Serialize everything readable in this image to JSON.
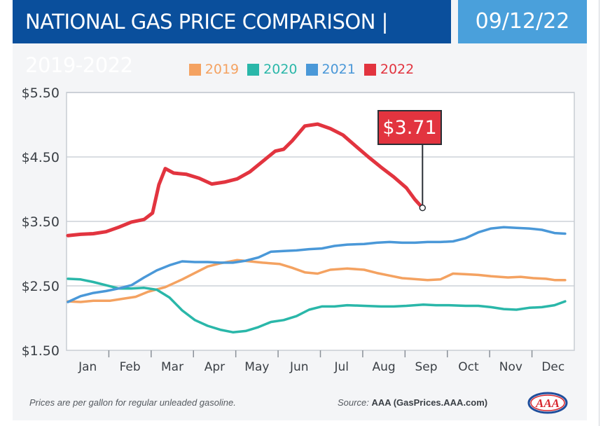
{
  "header": {
    "title": "NATIONAL GAS PRICE COMPARISON | 2019-2022",
    "date": "09/12/22"
  },
  "colors": {
    "header_bg": "#0a4f9c",
    "date_bg": "#4aa0db",
    "grid": "#d9dde2"
  },
  "footer": {
    "note": "Prices are per gallon for regular unleaded gasoline.",
    "source_label": "Source:",
    "source_value": "AAA (GasPrices.AAA.com)",
    "logo": "AAA",
    "logo_icon": "aaa-logo-icon"
  },
  "chart_data": {
    "type": "line",
    "title": "NATIONAL GAS PRICE COMPARISON | 2019-2022",
    "xlabel": "",
    "ylabel": "",
    "ylim": [
      1.5,
      5.5
    ],
    "yticks": [
      1.5,
      2.5,
      3.5,
      4.5,
      5.5
    ],
    "ytick_labels": [
      "$1.50",
      "$2.50",
      "$3.50",
      "$4.50",
      "$5.50"
    ],
    "x_months": [
      "Jan",
      "Feb",
      "Mar",
      "Apr",
      "May",
      "Jun",
      "Jul",
      "Aug",
      "Sep",
      "Oct",
      "Nov",
      "Dec"
    ],
    "grid": true,
    "legend_position": "top-center",
    "annotation": {
      "label": "$3.71",
      "series": "2022",
      "x": 8.38,
      "y": 3.71
    },
    "series": [
      {
        "name": "2019",
        "color": "#f4a261",
        "x": [
          0,
          0.3,
          0.6,
          1.0,
          1.3,
          1.6,
          1.9,
          2.3,
          2.7,
          3.0,
          3.3,
          3.6,
          4.0,
          4.3,
          4.6,
          5.0,
          5.3,
          5.6,
          5.9,
          6.2,
          6.6,
          7.0,
          7.3,
          7.6,
          7.9,
          8.1,
          8.5,
          8.8,
          9.1,
          9.4,
          9.7,
          10.0,
          10.4,
          10.7,
          11.0,
          11.3,
          11.5,
          11.75
        ],
        "y": [
          2.26,
          2.25,
          2.27,
          2.27,
          2.3,
          2.33,
          2.41,
          2.48,
          2.6,
          2.7,
          2.8,
          2.85,
          2.9,
          2.88,
          2.86,
          2.84,
          2.78,
          2.71,
          2.69,
          2.75,
          2.77,
          2.75,
          2.7,
          2.66,
          2.62,
          2.61,
          2.59,
          2.6,
          2.69,
          2.68,
          2.67,
          2.65,
          2.63,
          2.64,
          2.62,
          2.61,
          2.59,
          2.59
        ]
      },
      {
        "name": "2020",
        "color": "#2ab7a9",
        "x": [
          0,
          0.3,
          0.6,
          0.9,
          1.2,
          1.5,
          1.8,
          2.1,
          2.4,
          2.7,
          3.0,
          3.3,
          3.6,
          3.9,
          4.2,
          4.5,
          4.8,
          5.1,
          5.4,
          5.7,
          6.0,
          6.3,
          6.6,
          7.0,
          7.4,
          7.7,
          8.0,
          8.4,
          8.7,
          9.0,
          9.4,
          9.7,
          10.0,
          10.3,
          10.6,
          10.9,
          11.2,
          11.5,
          11.75
        ],
        "y": [
          2.61,
          2.6,
          2.56,
          2.51,
          2.46,
          2.46,
          2.47,
          2.44,
          2.32,
          2.12,
          1.97,
          1.88,
          1.82,
          1.78,
          1.8,
          1.86,
          1.94,
          1.97,
          2.03,
          2.13,
          2.18,
          2.18,
          2.2,
          2.19,
          2.18,
          2.18,
          2.19,
          2.21,
          2.2,
          2.2,
          2.19,
          2.19,
          2.17,
          2.14,
          2.13,
          2.16,
          2.17,
          2.2,
          2.26
        ]
      },
      {
        "name": "2021",
        "color": "#4a98d8",
        "x": [
          0,
          0.3,
          0.6,
          0.9,
          1.2,
          1.5,
          1.8,
          2.1,
          2.4,
          2.7,
          3.0,
          3.3,
          3.6,
          3.9,
          4.2,
          4.5,
          4.8,
          5.1,
          5.4,
          5.7,
          6.0,
          6.3,
          6.6,
          7.0,
          7.3,
          7.6,
          7.9,
          8.2,
          8.5,
          8.8,
          9.1,
          9.4,
          9.7,
          10.0,
          10.3,
          10.6,
          10.9,
          11.2,
          11.5,
          11.75
        ],
        "y": [
          2.25,
          2.34,
          2.39,
          2.42,
          2.46,
          2.51,
          2.63,
          2.74,
          2.82,
          2.88,
          2.87,
          2.87,
          2.86,
          2.86,
          2.89,
          2.94,
          3.03,
          3.04,
          3.05,
          3.07,
          3.08,
          3.12,
          3.14,
          3.15,
          3.17,
          3.18,
          3.17,
          3.17,
          3.18,
          3.18,
          3.19,
          3.24,
          3.33,
          3.39,
          3.41,
          3.4,
          3.39,
          3.37,
          3.32,
          3.31
        ]
      },
      {
        "name": "2022",
        "color": "#e2343f",
        "x": [
          0,
          0.3,
          0.6,
          0.9,
          1.2,
          1.5,
          1.8,
          2.0,
          2.15,
          2.3,
          2.5,
          2.8,
          3.1,
          3.4,
          3.7,
          4.0,
          4.3,
          4.6,
          4.9,
          5.1,
          5.3,
          5.6,
          5.9,
          6.2,
          6.5,
          6.8,
          7.1,
          7.4,
          7.7,
          8.0,
          8.2,
          8.38
        ],
        "y": [
          3.28,
          3.3,
          3.31,
          3.34,
          3.41,
          3.49,
          3.53,
          3.63,
          4.07,
          4.32,
          4.25,
          4.23,
          4.17,
          4.08,
          4.11,
          4.16,
          4.27,
          4.43,
          4.59,
          4.62,
          4.75,
          4.98,
          5.01,
          4.94,
          4.84,
          4.67,
          4.5,
          4.34,
          4.19,
          4.02,
          3.84,
          3.71
        ]
      }
    ]
  }
}
